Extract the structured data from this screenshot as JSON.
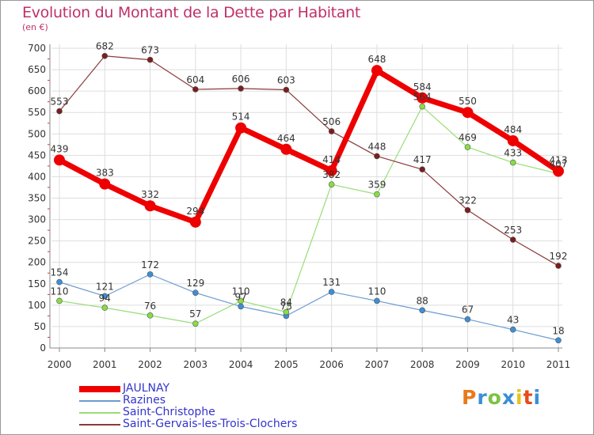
{
  "chart_data": {
    "type": "line",
    "title": "Evolution du Montant de la Dette par Habitant",
    "subtitle": "(en €)",
    "xlabel": "",
    "ylabel": "",
    "x": [
      "2000",
      "2001",
      "2002",
      "2003",
      "2004",
      "2005",
      "2006",
      "2007",
      "2008",
      "2009",
      "2010",
      "2011"
    ],
    "ylim": [
      0,
      700
    ],
    "yticks": [
      0,
      50,
      100,
      150,
      200,
      250,
      300,
      350,
      400,
      450,
      500,
      550,
      600,
      650,
      700
    ],
    "grid": true,
    "legend": "bottom-left",
    "series": [
      {
        "name": "JAULNAY",
        "color": "#ee0000",
        "width": 7,
        "marker": 7,
        "markerColor": "#ee0000",
        "values": [
          439,
          383,
          332,
          294,
          514,
          464,
          414,
          648,
          584,
          550,
          484,
          413
        ]
      },
      {
        "name": "Razines",
        "color": "#6b9bd2",
        "width": 1.2,
        "marker": 3.5,
        "markerColor": "#3d8fd6",
        "values": [
          154,
          121,
          172,
          129,
          97,
          75,
          131,
          110,
          88,
          67,
          43,
          18
        ]
      },
      {
        "name": "Saint-Christophe",
        "color": "#99dd77",
        "width": 1.2,
        "marker": 3.5,
        "markerColor": "#88dd44",
        "values": [
          110,
          94,
          76,
          57,
          110,
          84,
          382,
          359,
          564,
          469,
          433,
          407
        ]
      },
      {
        "name": "Saint-Gervais-les-Trois-Clochers",
        "color": "#8b3a3a",
        "width": 1.2,
        "marker": 3.5,
        "markerColor": "#7a1e1e",
        "values": [
          553,
          682,
          673,
          604,
          606,
          603,
          506,
          448,
          417,
          322,
          253,
          192
        ]
      }
    ]
  },
  "logo": {
    "text": "Proxiti",
    "colors": [
      "#e87a1a",
      "#3a8fd8",
      "#7cc242",
      "#3a8fd8",
      "#e8c21a",
      "#e84a1a",
      "#3a8fd8"
    ]
  }
}
